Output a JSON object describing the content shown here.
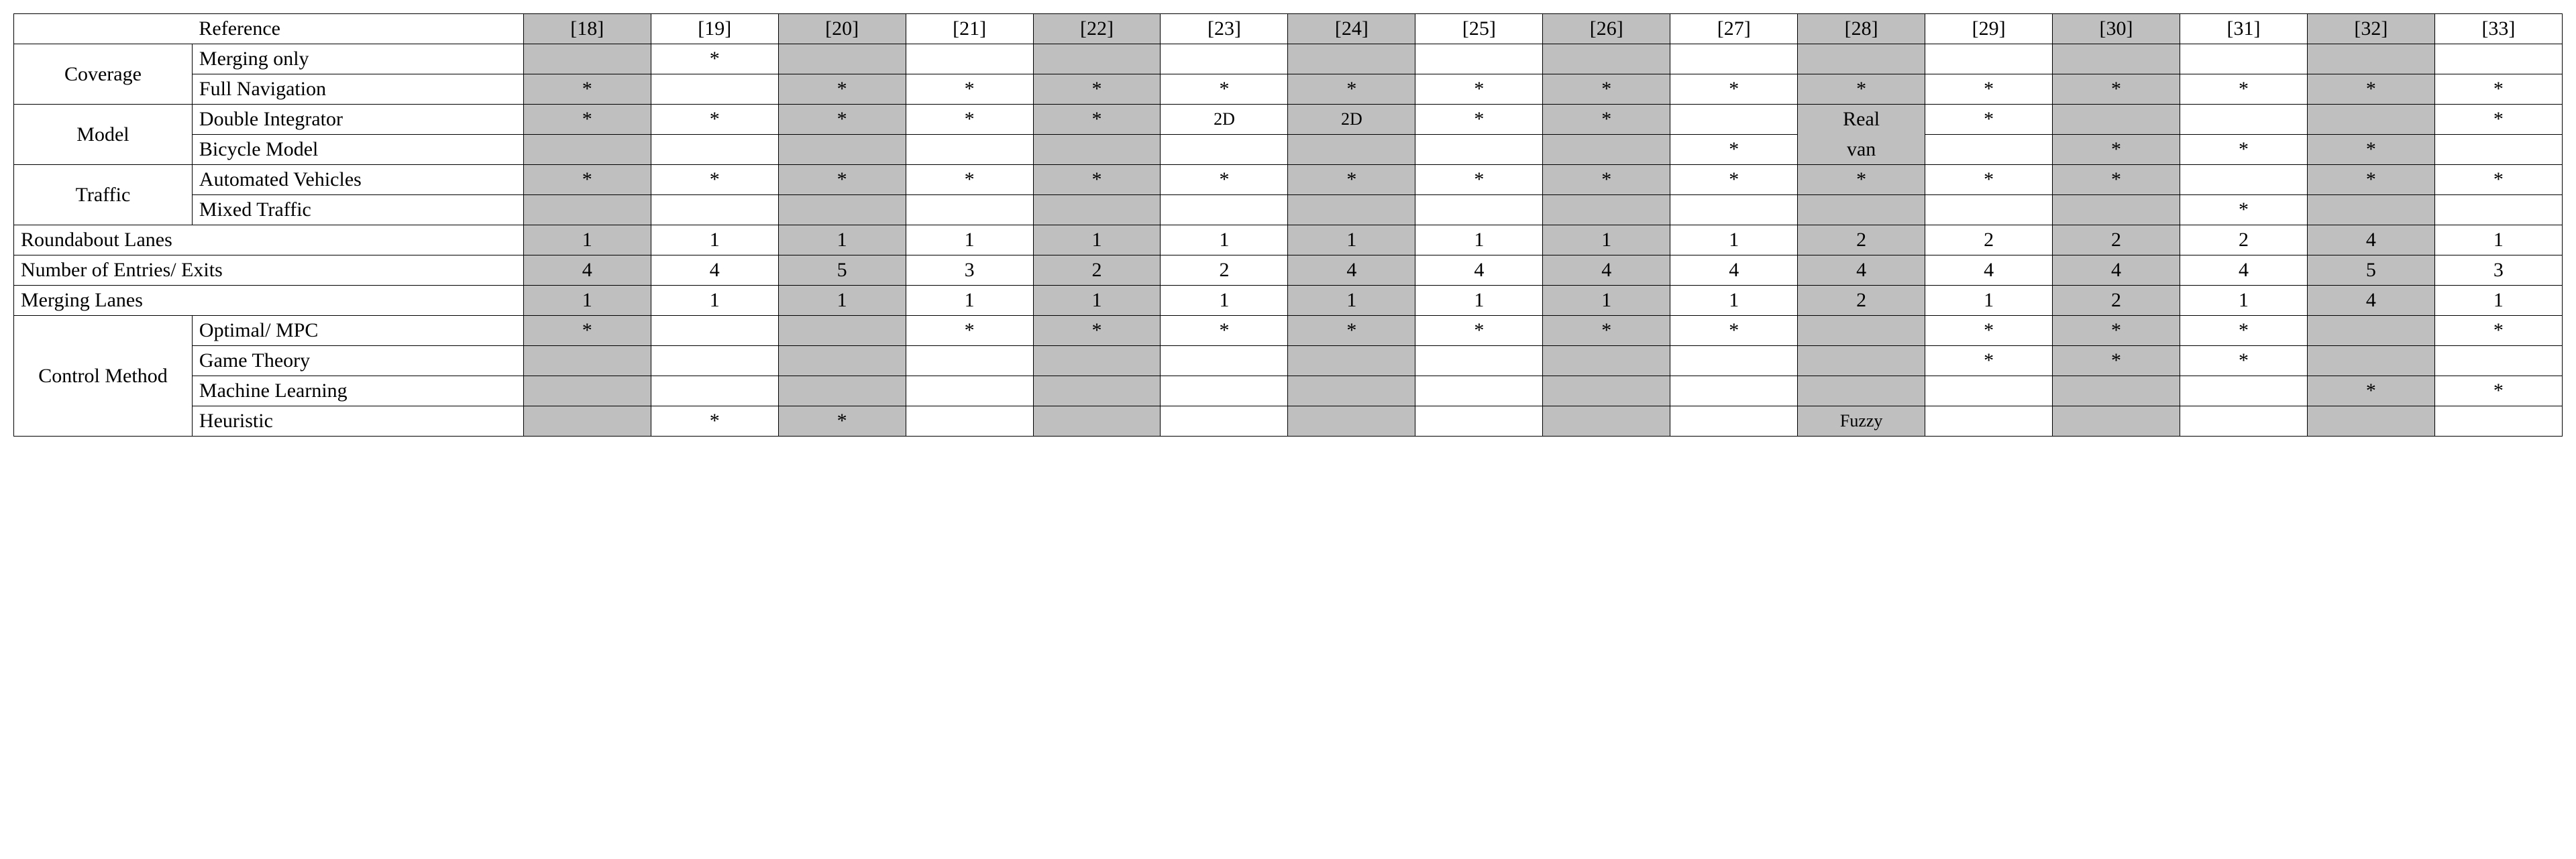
{
  "shaded_color": "#bfbfbf",
  "border_color": "#000000",
  "font_family": "Times New Roman",
  "header": {
    "reference_label": "Reference",
    "refs": [
      "[18]",
      "[19]",
      "[20]",
      "[21]",
      "[22]",
      "[23]",
      "[24]",
      "[25]",
      "[26]",
      "[27]",
      "[28]",
      "[29]",
      "[30]",
      "[31]",
      "[32]",
      "[33]"
    ]
  },
  "shaded_cols": [
    0,
    2,
    4,
    6,
    8,
    10,
    12,
    14
  ],
  "categories": {
    "coverage": "Coverage",
    "model": "Model",
    "traffic": "Traffic",
    "control": "Control Method"
  },
  "rows": {
    "merging_only": {
      "label": "Merging only",
      "cells": [
        "",
        "*",
        "",
        "",
        "",
        "",
        "",
        "",
        "",
        "",
        "",
        "",
        "",
        "",
        "",
        ""
      ]
    },
    "full_navigation": {
      "label": "Full Navigation",
      "cells": [
        "*",
        "",
        "*",
        "*",
        "*",
        "*",
        "*",
        "*",
        "*",
        "*",
        "*",
        "*",
        "*",
        "*",
        "*",
        "*"
      ]
    },
    "double_integrator": {
      "label": "Double Integrator",
      "cells": [
        "*",
        "*",
        "*",
        "*",
        "*",
        "2D",
        "2D",
        "*",
        "*",
        "",
        "Real",
        "*",
        "",
        "",
        "",
        "*"
      ]
    },
    "bicycle_model": {
      "label": "Bicycle Model",
      "cells": [
        "",
        "",
        "",
        "",
        "",
        "",
        "",
        "",
        "",
        "*",
        "van",
        "",
        "*",
        "*",
        "*",
        ""
      ]
    },
    "automated_vehicles": {
      "label": "Automated Vehicles",
      "cells": [
        "*",
        "*",
        "*",
        "*",
        "*",
        "*",
        "*",
        "*",
        "*",
        "*",
        "*",
        "*",
        "*",
        "",
        "*",
        "*"
      ]
    },
    "mixed_traffic": {
      "label": "Mixed Traffic",
      "cells": [
        "",
        "",
        "",
        "",
        "",
        "",
        "",
        "",
        "",
        "",
        "",
        "",
        "",
        "*",
        "",
        ""
      ]
    },
    "roundabout_lanes": {
      "label": "Roundabout Lanes",
      "cells": [
        "1",
        "1",
        "1",
        "1",
        "1",
        "1",
        "1",
        "1",
        "1",
        "1",
        "2",
        "2",
        "2",
        "2",
        "4",
        "1"
      ]
    },
    "entries_exits": {
      "label": "Number of Entries/ Exits",
      "cells": [
        "4",
        "4",
        "5",
        "3",
        "2",
        "2",
        "4",
        "4",
        "4",
        "4",
        "4",
        "4",
        "4",
        "4",
        "5",
        "3"
      ]
    },
    "merging_lanes": {
      "label": "Merging Lanes",
      "cells": [
        "1",
        "1",
        "1",
        "1",
        "1",
        "1",
        "1",
        "1",
        "1",
        "1",
        "2",
        "1",
        "2",
        "1",
        "4",
        "1"
      ]
    },
    "optimal_mpc": {
      "label": "Optimal/ MPC",
      "cells": [
        "*",
        "",
        "",
        "*",
        "*",
        "*",
        "*",
        "*",
        "*",
        "*",
        "",
        "*",
        "*",
        "*",
        "",
        "*"
      ]
    },
    "game_theory": {
      "label": "Game Theory",
      "cells": [
        "",
        "",
        "",
        "",
        "",
        "",
        "",
        "",
        "",
        "",
        "",
        "*",
        "*",
        "*",
        "",
        ""
      ]
    },
    "machine_learning": {
      "label": "Machine Learning",
      "cells": [
        "",
        "",
        "",
        "",
        "",
        "",
        "",
        "",
        "",
        "",
        "",
        "",
        "",
        "",
        "*",
        "*"
      ]
    },
    "heuristic": {
      "label": "Heuristic",
      "cells": [
        "",
        "*",
        "*",
        "",
        "",
        "",
        "",
        "",
        "",
        "",
        "Fuzzy",
        "",
        "",
        "",
        "",
        ""
      ]
    }
  }
}
